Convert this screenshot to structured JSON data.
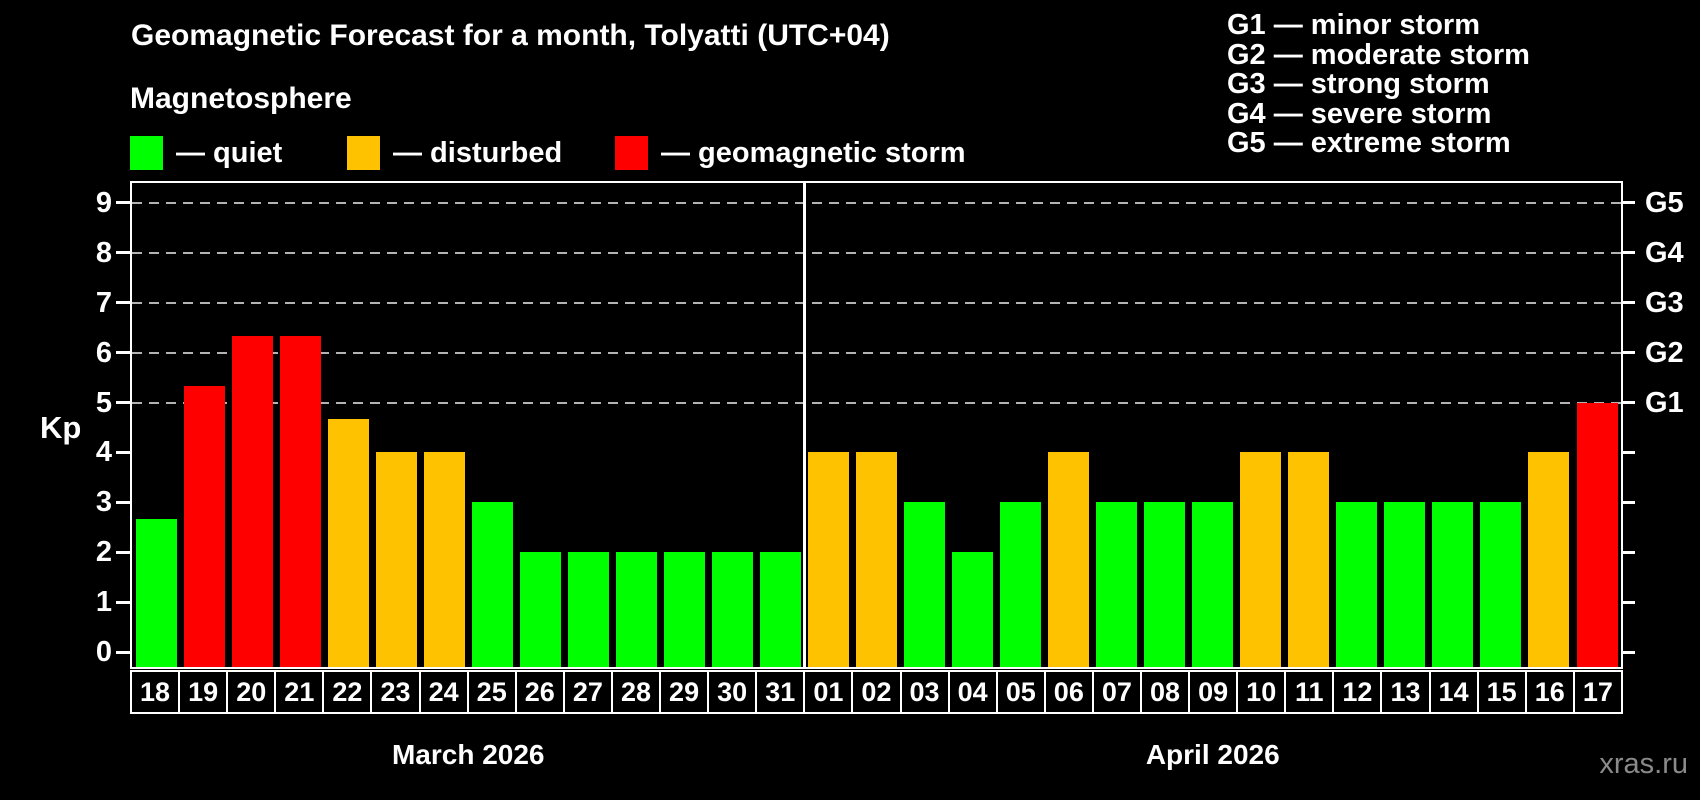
{
  "title": "Geomagnetic Forecast for a month, Tolyatti (UTC+04)",
  "magnetosphere_label": "Magnetosphere",
  "status_legend": [
    {
      "key": "quiet",
      "label": "— quiet"
    },
    {
      "key": "disturbed",
      "label": "— disturbed"
    },
    {
      "key": "storm",
      "label": "— geomagnetic storm"
    }
  ],
  "g_legend": [
    "G1 — minor storm",
    "G2 — moderate storm",
    "G3 — strong storm",
    "G4 — severe storm",
    "G5 — extreme storm"
  ],
  "watermark": "xras.ru",
  "colors": {
    "quiet": "#00ff00",
    "disturbed": "#ffc200",
    "storm": "#ff0000",
    "grid": "#b3b3b3",
    "axis": "#ffffff",
    "watermark": "#8a8a8a"
  },
  "chart_data": {
    "type": "bar",
    "title": "Geomagnetic Forecast for a month, Tolyatti (UTC+04)",
    "ylabel": "Kp",
    "ylim": [
      -0.3,
      9.4
    ],
    "yticks": [
      0,
      1,
      2,
      3,
      4,
      5,
      6,
      7,
      8,
      9
    ],
    "grid": "dashed horizontal lines at G1–G5 levels only",
    "legend_position": "top",
    "right_axis": [
      {
        "kp": 5,
        "label": "G1"
      },
      {
        "kp": 6,
        "label": "G2"
      },
      {
        "kp": 7,
        "label": "G3"
      },
      {
        "kp": 8,
        "label": "G4"
      },
      {
        "kp": 9,
        "label": "G5"
      }
    ],
    "months": [
      {
        "label": "March 2026",
        "categories": [
          "18",
          "19",
          "20",
          "21",
          "22",
          "23",
          "24",
          "25",
          "26",
          "27",
          "28",
          "29",
          "30",
          "31"
        ],
        "values": [
          2.67,
          5.33,
          6.33,
          6.33,
          4.67,
          4,
          4,
          3,
          2,
          2,
          2,
          2,
          2,
          2
        ],
        "statuses": [
          "quiet",
          "storm",
          "storm",
          "storm",
          "disturbed",
          "disturbed",
          "disturbed",
          "quiet",
          "quiet",
          "quiet",
          "quiet",
          "quiet",
          "quiet",
          "quiet"
        ]
      },
      {
        "label": "April 2026",
        "categories": [
          "01",
          "02",
          "03",
          "04",
          "05",
          "06",
          "07",
          "08",
          "09",
          "10",
          "11",
          "12",
          "13",
          "14",
          "15",
          "16",
          "17"
        ],
        "values": [
          4,
          4,
          3,
          2,
          3,
          4,
          3,
          3,
          3,
          4,
          4,
          3,
          3,
          3,
          3,
          4,
          5
        ],
        "statuses": [
          "disturbed",
          "disturbed",
          "quiet",
          "quiet",
          "quiet",
          "disturbed",
          "quiet",
          "quiet",
          "quiet",
          "disturbed",
          "disturbed",
          "quiet",
          "quiet",
          "quiet",
          "quiet",
          "disturbed",
          "storm"
        ]
      }
    ]
  }
}
